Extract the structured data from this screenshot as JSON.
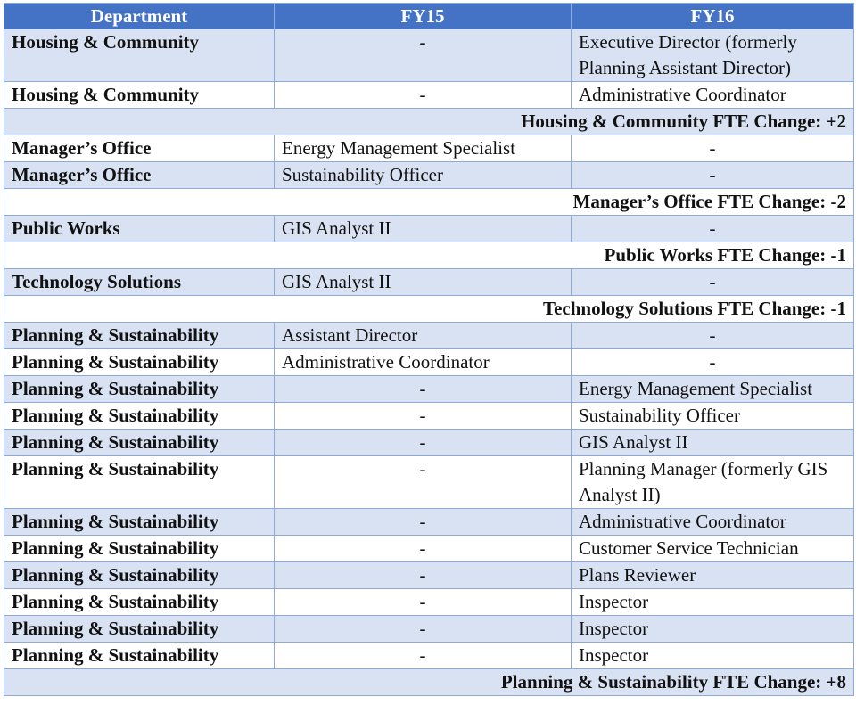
{
  "table": {
    "headers": [
      "Department",
      "FY15",
      "FY16"
    ],
    "rows": [
      {
        "type": "data",
        "band": true,
        "dept": "Housing & Community",
        "fy15": "-",
        "fy16": "Executive Director (formerly Planning Assistant Director)"
      },
      {
        "type": "data",
        "band": false,
        "dept": "Housing & Community",
        "fy15": "-",
        "fy16": "Administrative Coordinator"
      },
      {
        "type": "summary",
        "band": true,
        "text": "Housing & Community FTE Change: +2"
      },
      {
        "type": "data",
        "band": false,
        "dept": "Manager’s Office",
        "fy15": "Energy Management Specialist",
        "fy16": "-"
      },
      {
        "type": "data",
        "band": true,
        "dept": "Manager’s Office",
        "fy15": "Sustainability Officer",
        "fy16": "-"
      },
      {
        "type": "summary",
        "band": false,
        "text": "Manager’s Office FTE Change: -2"
      },
      {
        "type": "data",
        "band": true,
        "dept": "Public Works",
        "fy15": "GIS Analyst II",
        "fy16": "-"
      },
      {
        "type": "summary",
        "band": false,
        "text": "Public Works FTE Change: -1"
      },
      {
        "type": "data",
        "band": true,
        "dept": "Technology Solutions",
        "fy15": "GIS Analyst II",
        "fy16": "-"
      },
      {
        "type": "summary",
        "band": false,
        "text": "Technology Solutions FTE Change: -1"
      },
      {
        "type": "data",
        "band": true,
        "dept": "Planning & Sustainability",
        "fy15": "Assistant Director",
        "fy16": "-"
      },
      {
        "type": "data",
        "band": false,
        "dept": "Planning & Sustainability",
        "fy15": "Administrative Coordinator",
        "fy16": "-"
      },
      {
        "type": "data",
        "band": true,
        "dept": "Planning & Sustainability",
        "fy15": "-",
        "fy16": "Energy Management Specialist"
      },
      {
        "type": "data",
        "band": false,
        "dept": "Planning & Sustainability",
        "fy15": "-",
        "fy16": "Sustainability Officer"
      },
      {
        "type": "data",
        "band": true,
        "dept": "Planning & Sustainability",
        "fy15": "-",
        "fy16": "GIS Analyst II"
      },
      {
        "type": "data",
        "band": false,
        "dept": "Planning & Sustainability",
        "fy15": "-",
        "fy16": "Planning Manager (formerly GIS Analyst II)"
      },
      {
        "type": "data",
        "band": true,
        "dept": "Planning & Sustainability",
        "fy15": "-",
        "fy16": "Administrative Coordinator"
      },
      {
        "type": "data",
        "band": false,
        "dept": "Planning & Sustainability",
        "fy15": "-",
        "fy16": "Customer Service Technician"
      },
      {
        "type": "data",
        "band": true,
        "dept": "Planning & Sustainability",
        "fy15": "-",
        "fy16": "Plans Reviewer"
      },
      {
        "type": "data",
        "band": false,
        "dept": "Planning & Sustainability",
        "fy15": "-",
        "fy16": "Inspector"
      },
      {
        "type": "data",
        "band": true,
        "dept": "Planning & Sustainability",
        "fy15": "-",
        "fy16": "Inspector"
      },
      {
        "type": "data",
        "band": false,
        "dept": "Planning & Sustainability",
        "fy15": "-",
        "fy16": "Inspector"
      },
      {
        "type": "summary",
        "band": true,
        "text": "Planning & Sustainability FTE Change: +8"
      }
    ]
  },
  "colors": {
    "header_bg": "#4472c4",
    "band_bg": "#d9e2f3",
    "border": "#8eaadb"
  }
}
